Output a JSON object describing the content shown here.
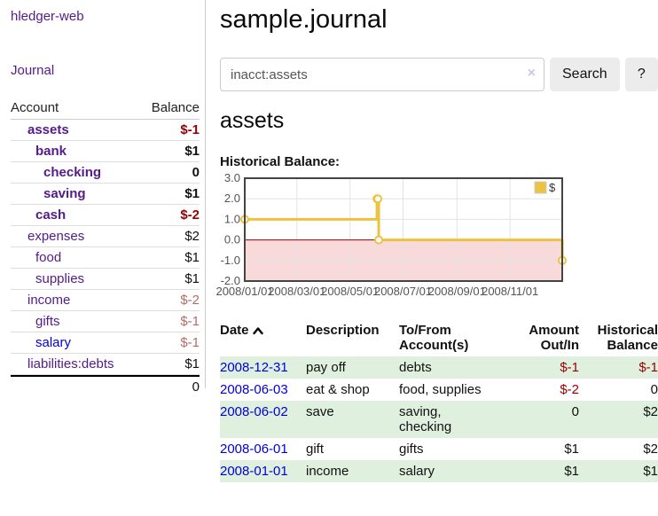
{
  "app": {
    "title": "hledger-web"
  },
  "sidebar": {
    "journal_link": "Journal",
    "columns": {
      "account": "Account",
      "balance": "Balance"
    },
    "accounts": [
      {
        "name": "assets",
        "depth": 1,
        "balance": "$-1",
        "bold": true,
        "neg": "strong"
      },
      {
        "name": "bank",
        "depth": 2,
        "balance": "$1",
        "bold": true,
        "neg": "none"
      },
      {
        "name": "checking",
        "depth": 3,
        "balance": "0",
        "bold": true,
        "neg": "none"
      },
      {
        "name": "saving",
        "depth": 3,
        "balance": "$1",
        "bold": true,
        "neg": "none"
      },
      {
        "name": "cash",
        "depth": 2,
        "balance": "$-2",
        "bold": true,
        "neg": "strong"
      },
      {
        "name": "expenses",
        "depth": 1,
        "balance": "$2",
        "bold": false,
        "neg": "none"
      },
      {
        "name": "food",
        "depth": 2,
        "balance": "$1",
        "bold": false,
        "neg": "none"
      },
      {
        "name": "supplies",
        "depth": 2,
        "balance": "$1",
        "bold": false,
        "neg": "none"
      },
      {
        "name": "income",
        "depth": 1,
        "balance": "$-2",
        "bold": false,
        "neg": "muted"
      },
      {
        "name": "gifts",
        "depth": 2,
        "balance": "$-1",
        "bold": false,
        "neg": "muted"
      },
      {
        "name": "salary",
        "depth": 2,
        "balance": "$-1",
        "bold": false,
        "neg": "muted",
        "link_color": "blue"
      },
      {
        "name": "liabilities:debts",
        "depth": 1,
        "balance": "$1",
        "bold": false,
        "neg": "none"
      }
    ],
    "total": "0"
  },
  "header": {
    "title": "sample.journal"
  },
  "search": {
    "value": "inacct:assets",
    "clear_icon": "×",
    "button_label": "Search",
    "help_label": "?"
  },
  "account_page": {
    "heading": "assets",
    "chart_label": "Historical Balance:"
  },
  "chart_data": {
    "type": "line",
    "title": "Historical Balance",
    "step": true,
    "xlim": [
      "2008-01-01",
      "2008-12-31"
    ],
    "ylim": [
      -2,
      3
    ],
    "y_ticks": [
      "3.0",
      "2.0",
      "1.0",
      "0.0",
      "-1.0",
      "-2.0"
    ],
    "x_tick_labels": [
      "2008/01/01",
      "2008/03/01",
      "2008/05/01",
      "2008/07/01",
      "2008/09/01",
      "2008/11/01"
    ],
    "series": [
      {
        "name": "$",
        "color": "#edc240",
        "points": [
          [
            "2008-01-01",
            1
          ],
          [
            "2008-06-01",
            2
          ],
          [
            "2008-06-02",
            2
          ],
          [
            "2008-06-03",
            0
          ],
          [
            "2008-12-31",
            -1
          ]
        ]
      }
    ],
    "legend": {
      "label": "$",
      "position": "top-right"
    },
    "colors": {
      "grid": "#e3e3e3",
      "frame": "#444444",
      "zero_line": "#8b0000",
      "negative_region": "#f9dadb",
      "tick_text": "#545454"
    }
  },
  "table": {
    "headers": [
      {
        "lines": [
          "Date"
        ],
        "sort": "asc",
        "align": "left"
      },
      {
        "lines": [
          "Description"
        ],
        "align": "left"
      },
      {
        "lines": [
          "To/From",
          "Account(s)"
        ],
        "align": "left"
      },
      {
        "lines": [
          "Amount",
          "Out/In"
        ],
        "align": "right"
      },
      {
        "lines": [
          "Historical",
          "Balance"
        ],
        "align": "right"
      }
    ],
    "rows": [
      {
        "date": "2008-12-31",
        "description": "pay off",
        "accounts": "debts",
        "amount": "$-1",
        "amount_neg": true,
        "balance": "$-1",
        "balance_neg": true,
        "shade": true
      },
      {
        "date": "2008-06-03",
        "description": "eat & shop",
        "accounts": "food, supplies",
        "amount": "$-2",
        "amount_neg": true,
        "balance": "0",
        "balance_neg": false,
        "shade": false
      },
      {
        "date": "2008-06-02",
        "description": "save",
        "accounts": "saving, checking",
        "amount": "0",
        "amount_neg": false,
        "balance": "$2",
        "balance_neg": false,
        "shade": true
      },
      {
        "date": "2008-06-01",
        "description": "gift",
        "accounts": "gifts",
        "amount": "$1",
        "amount_neg": false,
        "balance": "$2",
        "balance_neg": false,
        "shade": false
      },
      {
        "date": "2008-01-01",
        "description": "income",
        "accounts": "salary",
        "amount": "$1",
        "amount_neg": false,
        "balance": "$1",
        "balance_neg": false,
        "shade": true
      }
    ]
  }
}
